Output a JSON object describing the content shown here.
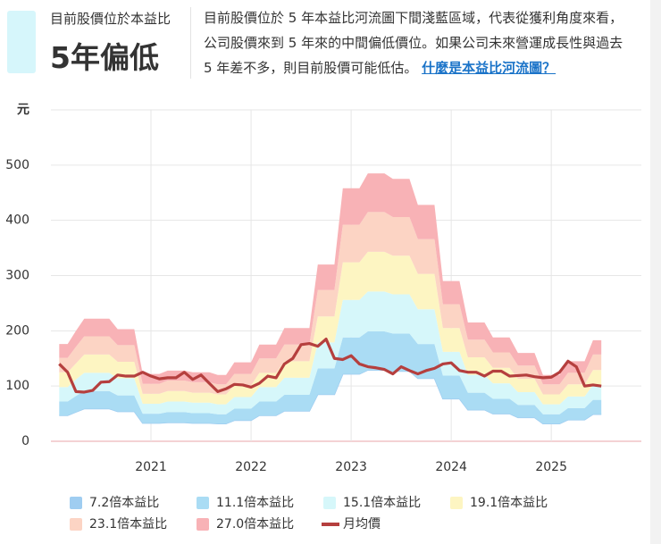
{
  "header": {
    "subtitle": "目前股價位於本益比",
    "title": "5年偏低",
    "description": "目前股價位於 5 年本益比河流圖下間淺藍區域，代表從獲利角度來看，公司股價來到 5 年來的中間偏低價位。如果公司未來營運成長性與過去 5 年差不多，則目前股價可能低估。",
    "link": "什麼是本益比河流圖？"
  },
  "chart_data": {
    "type": "river",
    "y_label": "元",
    "x": [
      2020.083,
      2020.167,
      2020.25,
      2020.333,
      2020.417,
      2020.5,
      2020.583,
      2020.667,
      2020.75,
      2020.833,
      2020.917,
      2021,
      2021.083,
      2021.167,
      2021.25,
      2021.333,
      2021.417,
      2021.5,
      2021.583,
      2021.667,
      2021.75,
      2021.833,
      2021.917,
      2022,
      2022.083,
      2022.167,
      2022.25,
      2022.333,
      2022.417,
      2022.5,
      2022.583,
      2022.667,
      2022.75,
      2022.833,
      2022.917,
      2023,
      2023.083,
      2023.167,
      2023.25,
      2023.333,
      2023.417,
      2023.5,
      2023.583,
      2023.667,
      2023.75,
      2023.833,
      2023.917,
      2024,
      2024.083,
      2024.167,
      2024.25,
      2024.333,
      2024.417,
      2024.5,
      2024.583,
      2024.667,
      2024.75,
      2024.833,
      2024.917,
      2025,
      2025.083,
      2025.167,
      2025.25,
      2025.333,
      2025.417,
      2025.5
    ],
    "xlim": [
      2020,
      2025.9
    ],
    "xticks": [
      2021,
      2022,
      2023,
      2024,
      2025
    ],
    "ylim": [
      0,
      600
    ],
    "yticks": [
      0,
      100,
      200,
      300,
      400,
      500
    ],
    "grid": true,
    "series": [
      {
        "name": "7.2倍本益比",
        "color": "#9fcdf1",
        "style": "band",
        "values": [
          47,
          47,
          53,
          59,
          59,
          59,
          59,
          54,
          54,
          54,
          33,
          33,
          33,
          34,
          34,
          34,
          33,
          33,
          33,
          32,
          32,
          38,
          38,
          38,
          47,
          47,
          47,
          55,
          55,
          55,
          55,
          85,
          85,
          85,
          122,
          122,
          122,
          129,
          129,
          129,
          127,
          127,
          127,
          114,
          114,
          114,
          77,
          77,
          77,
          57,
          57,
          57,
          50,
          50,
          50,
          43,
          43,
          43,
          32,
          32,
          32,
          39,
          39,
          39,
          49,
          49
        ]
      },
      {
        "name": "11.1倍本益比",
        "color": "#aadcf4",
        "style": "band",
        "values": [
          72,
          72,
          82,
          91,
          91,
          91,
          91,
          83,
          83,
          83,
          50,
          50,
          50,
          53,
          53,
          53,
          51,
          51,
          51,
          49,
          49,
          59,
          59,
          59,
          72,
          72,
          72,
          84,
          84,
          84,
          84,
          132,
          132,
          132,
          188,
          188,
          188,
          199,
          199,
          199,
          195,
          195,
          195,
          176,
          176,
          176,
          119,
          119,
          119,
          88,
          88,
          88,
          77,
          77,
          77,
          66,
          66,
          66,
          49,
          49,
          49,
          60,
          60,
          60,
          75,
          75
        ]
      },
      {
        "name": "15.1倍本益比",
        "color": "#d6f7fa",
        "style": "band",
        "values": [
          98,
          98,
          112,
          124,
          124,
          124,
          124,
          114,
          114,
          114,
          68,
          68,
          68,
          72,
          72,
          72,
          70,
          70,
          70,
          67,
          67,
          80,
          80,
          80,
          98,
          98,
          98,
          115,
          115,
          115,
          115,
          179,
          179,
          179,
          256,
          256,
          256,
          271,
          271,
          271,
          266,
          266,
          266,
          239,
          239,
          239,
          162,
          162,
          162,
          120,
          120,
          120,
          105,
          105,
          105,
          89,
          89,
          89,
          67,
          67,
          67,
          81,
          81,
          81,
          102,
          102
        ]
      },
      {
        "name": "19.1倍本益比",
        "color": "#fdf5c2",
        "style": "band",
        "values": [
          125,
          125,
          141,
          157,
          157,
          157,
          157,
          144,
          144,
          144,
          86,
          86,
          86,
          91,
          91,
          91,
          88,
          88,
          88,
          85,
          85,
          101,
          101,
          101,
          124,
          124,
          124,
          145,
          145,
          145,
          145,
          226,
          226,
          226,
          324,
          324,
          324,
          343,
          343,
          343,
          336,
          336,
          336,
          303,
          303,
          303,
          205,
          205,
          205,
          152,
          152,
          152,
          133,
          133,
          133,
          113,
          113,
          113,
          85,
          85,
          85,
          103,
          103,
          103,
          129,
          129
        ]
      },
      {
        "name": "23.1倍本益比",
        "color": "#fcd4c4",
        "style": "band",
        "values": [
          151,
          151,
          171,
          190,
          190,
          190,
          190,
          174,
          174,
          174,
          104,
          104,
          104,
          110,
          110,
          110,
          107,
          107,
          107,
          103,
          103,
          122,
          122,
          122,
          150,
          150,
          150,
          175,
          175,
          175,
          175,
          274,
          274,
          274,
          392,
          392,
          392,
          415,
          415,
          415,
          406,
          406,
          406,
          366,
          366,
          366,
          248,
          248,
          248,
          184,
          184,
          184,
          161,
          161,
          161,
          137,
          137,
          137,
          103,
          103,
          103,
          124,
          124,
          124,
          157,
          157
        ]
      },
      {
        "name": "27.0倍本益比",
        "color": "#f8b2b6",
        "style": "band",
        "values": [
          176,
          176,
          200,
          222,
          222,
          222,
          222,
          203,
          203,
          203,
          122,
          122,
          122,
          128,
          128,
          128,
          125,
          125,
          125,
          120,
          120,
          143,
          143,
          143,
          175,
          175,
          175,
          205,
          205,
          205,
          205,
          320,
          320,
          320,
          458,
          458,
          458,
          485,
          485,
          485,
          475,
          475,
          475,
          428,
          428,
          428,
          290,
          290,
          290,
          215,
          215,
          215,
          188,
          188,
          188,
          160,
          160,
          160,
          120,
          120,
          120,
          145,
          145,
          145,
          183,
          183
        ]
      },
      {
        "name": "月均價",
        "color": "#b53f3e",
        "style": "line",
        "values": [
          140,
          125,
          90,
          89,
          92,
          107,
          108,
          120,
          118,
          118,
          125,
          118,
          113,
          115,
          115,
          125,
          112,
          120,
          105,
          90,
          95,
          103,
          102,
          98,
          105,
          118,
          115,
          140,
          150,
          175,
          177,
          172,
          185,
          150,
          148,
          155,
          140,
          135,
          133,
          130,
          122,
          135,
          128,
          122,
          128,
          132,
          140,
          142,
          128,
          125,
          125,
          118,
          127,
          127,
          118,
          119,
          120,
          117,
          115,
          116,
          125,
          145,
          135,
          100,
          102,
          100
        ]
      }
    ]
  }
}
